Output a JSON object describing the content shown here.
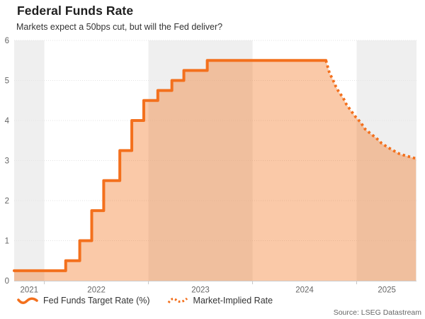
{
  "header": {
    "title": "Federal Funds Rate",
    "subtitle": "Markets expect a 50bps cut, but will the Fed deliver?"
  },
  "legend": [
    {
      "label": "Fed Funds Target Rate (%)",
      "style": "solid"
    },
    {
      "label": "Market-Implied Rate",
      "style": "dotted"
    }
  ],
  "source": "Source: LSEG Datastream",
  "colors": {
    "line": "#f3701d",
    "fill": "rgba(243,112,27,0.38)",
    "band": "#efefef",
    "grid": "#e3e3e3",
    "axis_line": "#cccccc",
    "tick": "#c6c6c6",
    "axis_text": "#666666",
    "title_text": "#1f1f1f",
    "subtitle_text": "#333333",
    "source_text": "#666666"
  },
  "chart_data": {
    "type": "area",
    "title": "Federal Funds Rate",
    "subtitle": "Markets expect a 50bps cut, but will the Fed deliver?",
    "ylabel": "",
    "xlabel": "",
    "ylim": [
      0,
      6
    ],
    "yticks": [
      0,
      1,
      2,
      3,
      4,
      5,
      6
    ],
    "x_range": [
      2021.71,
      2025.575
    ],
    "xticks": [
      2022,
      2023,
      2024,
      2025
    ],
    "xtick_labels": [
      {
        "label": "2021",
        "x": 2021.855
      },
      {
        "label": "2022",
        "x": 2022.5
      },
      {
        "label": "2023",
        "x": 2023.5
      },
      {
        "label": "2024",
        "x": 2024.5
      },
      {
        "label": "2025",
        "x": 2025.29
      }
    ],
    "shaded_year_bands": [
      [
        2021.71,
        2022
      ],
      [
        2023,
        2024
      ],
      [
        2025,
        2025.575
      ]
    ],
    "grid": true,
    "legend_position": "bottom-left",
    "series": [
      {
        "name": "Fed Funds Target Rate (%)",
        "type": "step-area",
        "line_style": "solid",
        "points": [
          [
            2021.71,
            0.25
          ],
          [
            2022.205,
            0.5
          ],
          [
            2022.34,
            1.0
          ],
          [
            2022.455,
            1.75
          ],
          [
            2022.57,
            2.5
          ],
          [
            2022.725,
            3.25
          ],
          [
            2022.84,
            4.0
          ],
          [
            2022.955,
            4.5
          ],
          [
            2023.09,
            4.75
          ],
          [
            2023.225,
            5.0
          ],
          [
            2023.34,
            5.25
          ],
          [
            2023.565,
            5.5
          ],
          [
            2024.705,
            5.5
          ]
        ]
      },
      {
        "name": "Market-Implied Rate",
        "type": "line-area",
        "line_style": "dotted",
        "points": [
          [
            2024.705,
            5.5
          ],
          [
            2024.72,
            5.36
          ],
          [
            2024.74,
            5.18
          ],
          [
            2024.77,
            5.03
          ],
          [
            2024.8,
            4.85
          ],
          [
            2024.83,
            4.71
          ],
          [
            2024.87,
            4.57
          ],
          [
            2024.9,
            4.41
          ],
          [
            2024.95,
            4.23
          ],
          [
            2024.99,
            4.09
          ],
          [
            2025.04,
            3.95
          ],
          [
            2025.08,
            3.79
          ],
          [
            2025.13,
            3.68
          ],
          [
            2025.19,
            3.56
          ],
          [
            2025.24,
            3.43
          ],
          [
            2025.3,
            3.33
          ],
          [
            2025.36,
            3.24
          ],
          [
            2025.41,
            3.17
          ],
          [
            2025.47,
            3.12
          ],
          [
            2025.53,
            3.08
          ],
          [
            2025.57,
            3.05
          ]
        ]
      }
    ],
    "source": "Source: LSEG Datastream"
  }
}
